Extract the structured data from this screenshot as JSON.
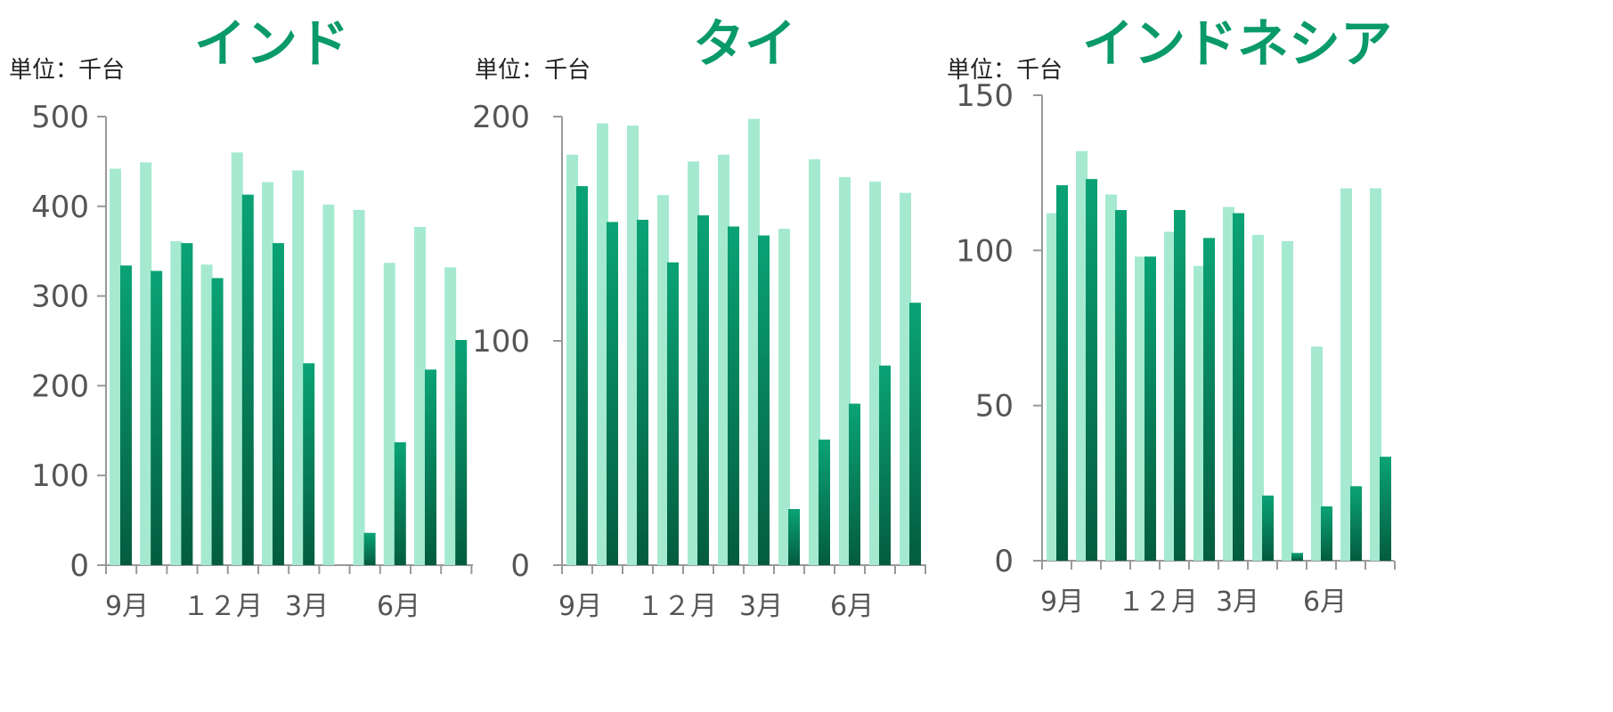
{
  "colors": {
    "prev": "#a5ead0",
    "curr_top": "#0aa375",
    "curr_bottom": "#045c3f",
    "axis": "#999999",
    "title": "#0a9a6a"
  },
  "chart_data": [
    {
      "type": "bar",
      "title": "インド",
      "unit_label": "単位：千台",
      "ylim": [
        0,
        500
      ],
      "yticks": [
        "0",
        "100",
        "200",
        "300",
        "400",
        "500"
      ],
      "xtick_labels": [
        "9月",
        "１２月",
        "3月",
        "6月"
      ],
      "series": [
        {
          "values": [
            442,
            449,
            361,
            335,
            460,
            427,
            440,
            402,
            396,
            337,
            377,
            332
          ]
        },
        {
          "values": [
            334,
            328,
            359,
            320,
            413,
            359,
            225,
            0,
            36,
            137,
            218,
            251
          ]
        }
      ]
    },
    {
      "type": "bar",
      "title": "タイ",
      "unit_label": "単位：千台",
      "ylim": [
        0,
        200
      ],
      "yticks": [
        "0",
        "100",
        "200"
      ],
      "xtick_labels": [
        "9月",
        "１２月",
        "3月",
        "6月"
      ],
      "series": [
        {
          "values": [
            183,
            197,
            196,
            165,
            180,
            183,
            199,
            150,
            181,
            173,
            171,
            166
          ]
        },
        {
          "values": [
            169,
            153,
            154,
            135,
            156,
            151,
            147,
            25,
            56,
            72,
            89,
            117
          ]
        }
      ]
    },
    {
      "type": "bar",
      "title": "インドネシア",
      "unit_label": "単位：千台",
      "ylim": [
        0,
        150
      ],
      "yticks": [
        "0",
        "50",
        "100",
        "150"
      ],
      "xtick_labels": [
        "9月",
        "１２月",
        "3月",
        "6月"
      ],
      "series": [
        {
          "values": [
            112,
            132,
            118,
            98,
            106,
            95,
            114,
            105,
            103,
            69,
            120,
            120
          ]
        },
        {
          "values": [
            121,
            123,
            113,
            98,
            113,
            104,
            112,
            21,
            2.5,
            17.5,
            24,
            33.5
          ]
        }
      ]
    }
  ]
}
